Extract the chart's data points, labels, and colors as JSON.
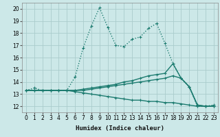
{
  "xlabel": "Humidex (Indice chaleur)",
  "background_color": "#cce8e8",
  "grid_color": "#aacccc",
  "line_color": "#1a7a6e",
  "xlim": [
    -0.5,
    23.5
  ],
  "ylim": [
    11.5,
    20.5
  ],
  "xticks": [
    0,
    1,
    2,
    3,
    4,
    5,
    6,
    7,
    8,
    9,
    10,
    11,
    12,
    13,
    14,
    15,
    16,
    17,
    18,
    19,
    20,
    21,
    22,
    23
  ],
  "yticks": [
    12,
    13,
    14,
    15,
    16,
    17,
    18,
    19,
    20
  ],
  "series": [
    {
      "y": [
        13.3,
        13.5,
        13.3,
        13.3,
        13.3,
        13.3,
        14.4,
        16.8,
        18.6,
        20.1,
        18.5,
        17.0,
        16.9,
        17.5,
        17.7,
        18.4,
        18.8,
        17.2,
        15.5,
        14.3,
        13.6,
        12.0,
        12.0,
        12.1
      ],
      "linestyle": "dotted",
      "linewidth": 1.0
    },
    {
      "y": [
        13.3,
        13.3,
        13.3,
        13.3,
        13.3,
        13.3,
        13.3,
        13.4,
        13.5,
        13.6,
        13.7,
        13.8,
        14.0,
        14.1,
        14.3,
        14.5,
        14.6,
        14.7,
        15.5,
        14.3,
        13.6,
        12.1,
        12.0,
        12.0
      ],
      "linestyle": "-",
      "linewidth": 1.0
    },
    {
      "y": [
        13.3,
        13.3,
        13.3,
        13.3,
        13.3,
        13.3,
        13.3,
        13.3,
        13.4,
        13.5,
        13.6,
        13.7,
        13.8,
        13.9,
        14.0,
        14.1,
        14.2,
        14.3,
        14.5,
        14.3,
        13.6,
        12.1,
        12.0,
        12.0
      ],
      "linestyle": "-",
      "linewidth": 1.0
    },
    {
      "y": [
        13.3,
        13.3,
        13.3,
        13.3,
        13.3,
        13.3,
        13.2,
        13.1,
        13.0,
        12.9,
        12.8,
        12.7,
        12.6,
        12.5,
        12.5,
        12.4,
        12.4,
        12.3,
        12.3,
        12.2,
        12.1,
        12.0,
        12.0,
        12.0
      ],
      "linestyle": "-",
      "linewidth": 1.0
    }
  ]
}
